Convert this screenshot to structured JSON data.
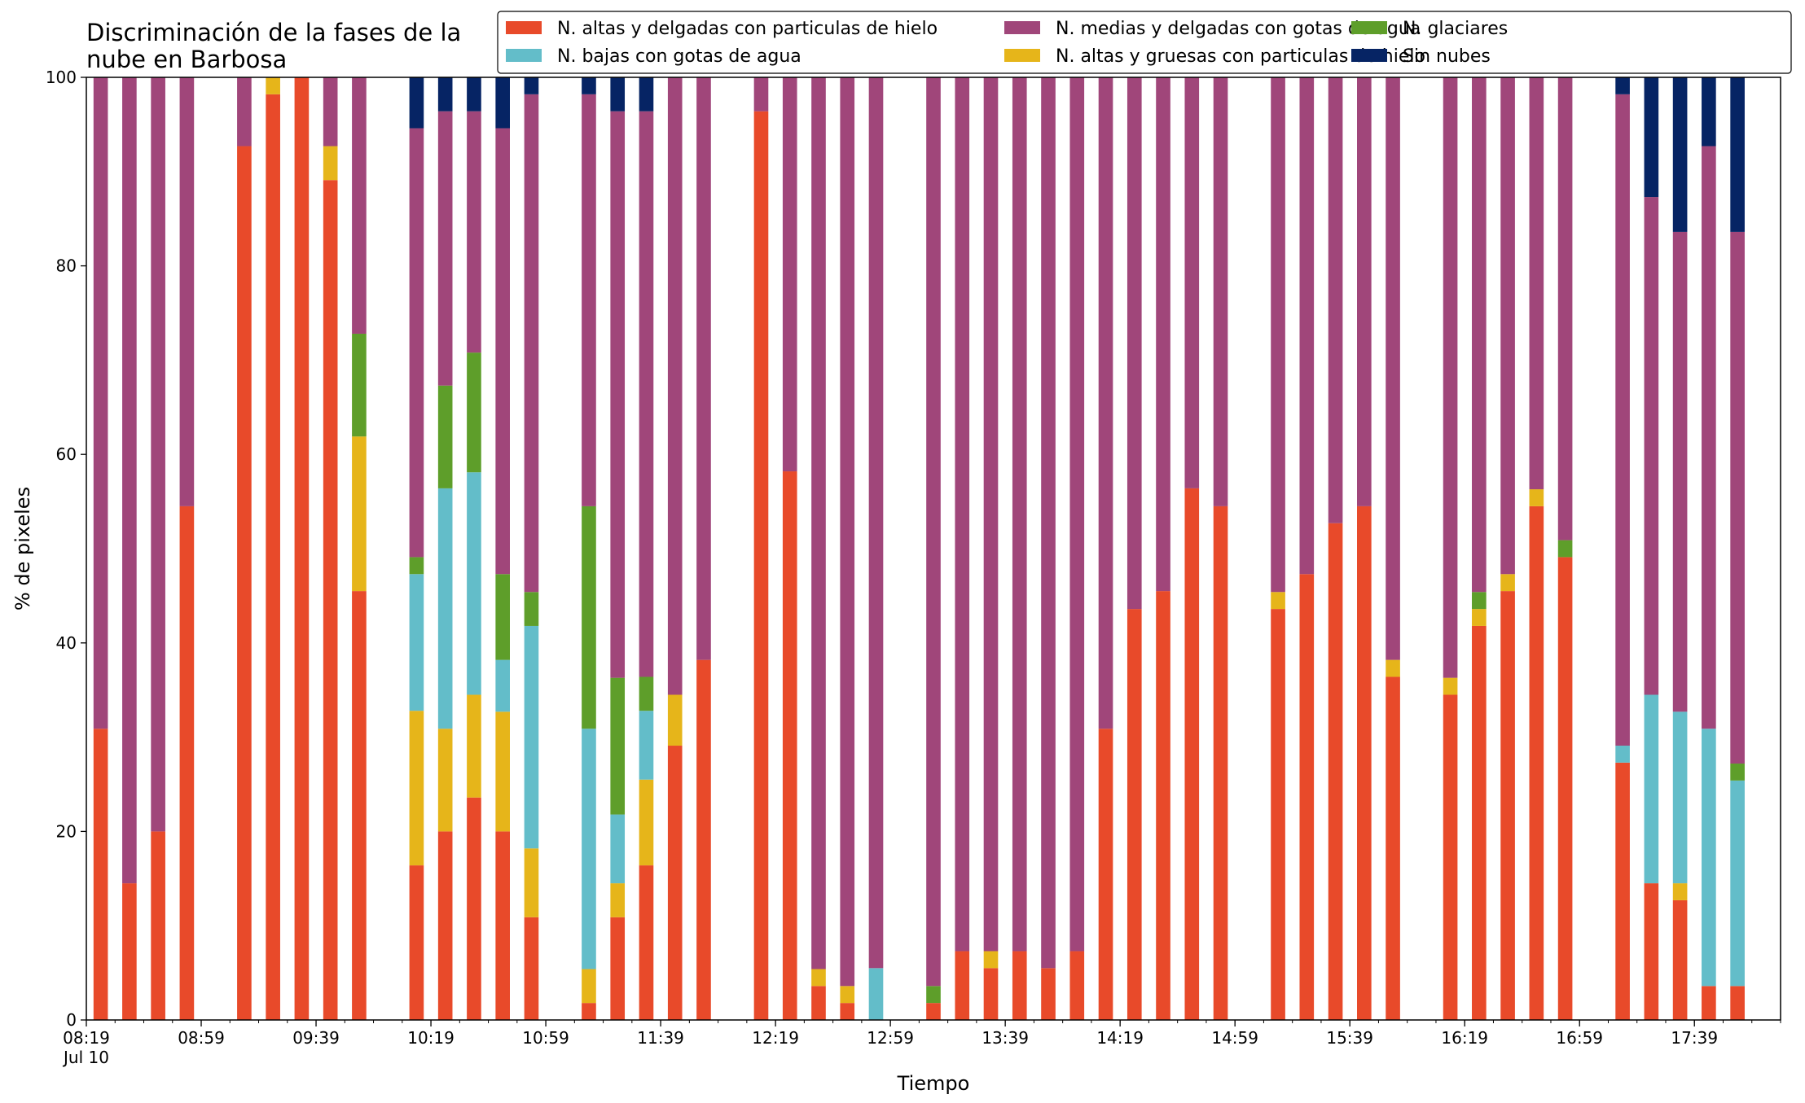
{
  "chart_data": {
    "type": "bar",
    "stacked": true,
    "title": [
      "Discriminación de la fases de la",
      "nube en Barbosa"
    ],
    "xlabel": "Tiempo",
    "ylabel": "% de pixeles",
    "ylim": [
      0,
      100
    ],
    "yticks": [
      0,
      20,
      40,
      60,
      80,
      100
    ],
    "xlim": [
      0,
      59
    ],
    "x_major_ticks": [
      {
        "pos": 0,
        "label": "08:19",
        "sublabel": "Jul 10"
      },
      {
        "pos": 4,
        "label": "08:59"
      },
      {
        "pos": 8,
        "label": "09:39"
      },
      {
        "pos": 12,
        "label": "10:19"
      },
      {
        "pos": 16,
        "label": "10:59"
      },
      {
        "pos": 20,
        "label": "11:39"
      },
      {
        "pos": 24,
        "label": "12:19"
      },
      {
        "pos": 28,
        "label": "12:59"
      },
      {
        "pos": 32,
        "label": "13:39"
      },
      {
        "pos": 36,
        "label": "14:19"
      },
      {
        "pos": 40,
        "label": "14:59"
      },
      {
        "pos": 44,
        "label": "15:39"
      },
      {
        "pos": 48,
        "label": "16:19"
      },
      {
        "pos": 52,
        "label": "16:59"
      },
      {
        "pos": 56,
        "label": "17:39"
      }
    ],
    "x_minor_tick_step": 1,
    "legend": "top-right",
    "series": [
      {
        "name": "N. altas y delgadas con particulas de hielo",
        "color": "#E84A2A"
      },
      {
        "name": "N. altas y gruesas con particulas de hielo",
        "color": "#E6B51A"
      },
      {
        "name": "N. bajas con gotas de agua",
        "color": "#63BDC9"
      },
      {
        "name": "N. glaciares",
        "color": "#5E9E2A"
      },
      {
        "name": "N. medias y delgadas con gotas de agua",
        "color": "#A0467A"
      },
      {
        "name": "Sin nubes",
        "color": "#062464"
      }
    ],
    "legend_order": [
      0,
      2,
      4,
      1,
      3,
      5
    ],
    "bars": [
      {
        "x": 0,
        "values": [
          30.9,
          0,
          0,
          0,
          69.1,
          0
        ]
      },
      {
        "x": 1,
        "values": [
          14.5,
          0,
          0,
          0,
          85.5,
          0
        ]
      },
      {
        "x": 2,
        "values": [
          20.0,
          0,
          0,
          0,
          80.0,
          0
        ]
      },
      {
        "x": 3,
        "values": [
          54.5,
          0,
          0,
          0,
          45.5,
          0
        ]
      },
      {
        "x": 5,
        "values": [
          92.7,
          0,
          0,
          0,
          7.3,
          0
        ]
      },
      {
        "x": 6,
        "values": [
          98.2,
          1.8,
          0,
          0,
          0,
          0
        ]
      },
      {
        "x": 7,
        "values": [
          100.0,
          0,
          0,
          0,
          0,
          0
        ]
      },
      {
        "x": 8,
        "values": [
          89.1,
          3.6,
          0,
          0,
          7.3,
          0
        ]
      },
      {
        "x": 9,
        "values": [
          45.5,
          16.4,
          0,
          10.9,
          27.2,
          0
        ]
      },
      {
        "x": 11,
        "values": [
          16.4,
          16.4,
          14.5,
          1.8,
          45.5,
          5.4
        ]
      },
      {
        "x": 12,
        "values": [
          20.0,
          10.9,
          25.5,
          10.9,
          29.1,
          3.6
        ]
      },
      {
        "x": 13,
        "values": [
          23.6,
          10.9,
          23.6,
          12.7,
          25.6,
          3.6
        ]
      },
      {
        "x": 14,
        "values": [
          20.0,
          12.7,
          5.5,
          9.1,
          47.3,
          5.4
        ]
      },
      {
        "x": 15,
        "values": [
          10.9,
          7.3,
          23.6,
          3.6,
          52.8,
          1.8
        ]
      },
      {
        "x": 17,
        "values": [
          1.8,
          3.6,
          25.5,
          23.6,
          43.7,
          1.8
        ]
      },
      {
        "x": 18,
        "values": [
          10.9,
          3.6,
          7.3,
          14.5,
          60.1,
          3.6
        ]
      },
      {
        "x": 19,
        "values": [
          16.4,
          9.1,
          7.3,
          3.6,
          60.0,
          3.6
        ]
      },
      {
        "x": 20,
        "values": [
          29.1,
          5.4,
          0,
          0,
          65.5,
          0
        ]
      },
      {
        "x": 21,
        "values": [
          38.2,
          0,
          0,
          0,
          61.8,
          0
        ]
      },
      {
        "x": 23,
        "values": [
          96.4,
          0,
          0,
          0,
          3.6,
          0
        ]
      },
      {
        "x": 24,
        "values": [
          58.2,
          0,
          0,
          0,
          41.8,
          0
        ]
      },
      {
        "x": 25,
        "values": [
          3.6,
          1.8,
          0,
          0,
          94.6,
          0
        ]
      },
      {
        "x": 26,
        "values": [
          1.8,
          1.8,
          0,
          0,
          96.4,
          0
        ]
      },
      {
        "x": 27,
        "values": [
          0,
          0,
          5.5,
          0,
          94.5,
          0
        ]
      },
      {
        "x": 29,
        "values": [
          1.8,
          0,
          0,
          1.8,
          96.4,
          0
        ]
      },
      {
        "x": 30,
        "values": [
          7.3,
          0,
          0,
          0,
          92.7,
          0
        ]
      },
      {
        "x": 31,
        "values": [
          5.5,
          1.8,
          0,
          0,
          92.7,
          0
        ]
      },
      {
        "x": 32,
        "values": [
          7.3,
          0,
          0,
          0,
          92.7,
          0
        ]
      },
      {
        "x": 33,
        "values": [
          5.5,
          0,
          0,
          0,
          94.5,
          0
        ]
      },
      {
        "x": 34,
        "values": [
          7.3,
          0,
          0,
          0,
          92.7,
          0
        ]
      },
      {
        "x": 35,
        "values": [
          30.9,
          0,
          0,
          0,
          69.1,
          0
        ]
      },
      {
        "x": 36,
        "values": [
          43.6,
          0,
          0,
          0,
          56.4,
          0
        ]
      },
      {
        "x": 37,
        "values": [
          45.5,
          0,
          0,
          0,
          54.5,
          0
        ]
      },
      {
        "x": 38,
        "values": [
          56.4,
          0,
          0,
          0,
          43.6,
          0
        ]
      },
      {
        "x": 39,
        "values": [
          54.5,
          0,
          0,
          0,
          45.5,
          0
        ]
      },
      {
        "x": 41,
        "values": [
          43.6,
          1.8,
          0,
          0,
          54.6,
          0
        ]
      },
      {
        "x": 42,
        "values": [
          47.3,
          0,
          0,
          0,
          52.7,
          0
        ]
      },
      {
        "x": 43,
        "values": [
          52.7,
          0,
          0,
          0,
          47.3,
          0
        ]
      },
      {
        "x": 44,
        "values": [
          54.5,
          0,
          0,
          0,
          45.5,
          0
        ]
      },
      {
        "x": 45,
        "values": [
          36.4,
          1.8,
          0,
          0,
          61.8,
          0
        ]
      },
      {
        "x": 47,
        "values": [
          34.5,
          1.8,
          0,
          0,
          63.7,
          0
        ]
      },
      {
        "x": 48,
        "values": [
          41.8,
          1.8,
          0,
          1.8,
          54.6,
          0
        ]
      },
      {
        "x": 49,
        "values": [
          45.5,
          1.8,
          0,
          0,
          52.7,
          0
        ]
      },
      {
        "x": 50,
        "values": [
          54.5,
          1.8,
          0,
          0,
          43.7,
          0
        ]
      },
      {
        "x": 51,
        "values": [
          49.1,
          0,
          0,
          1.8,
          49.1,
          0
        ]
      },
      {
        "x": 53,
        "values": [
          27.3,
          0,
          1.8,
          0,
          69.1,
          1.8
        ]
      },
      {
        "x": 54,
        "values": [
          14.5,
          0,
          20.0,
          0,
          52.8,
          12.7
        ]
      },
      {
        "x": 55,
        "values": [
          12.7,
          1.8,
          18.2,
          0,
          50.9,
          16.4
        ]
      },
      {
        "x": 56,
        "values": [
          3.6,
          0,
          27.3,
          0,
          61.8,
          7.3
        ]
      },
      {
        "x": 57,
        "values": [
          3.6,
          0,
          21.8,
          1.8,
          56.4,
          16.4
        ]
      }
    ]
  }
}
